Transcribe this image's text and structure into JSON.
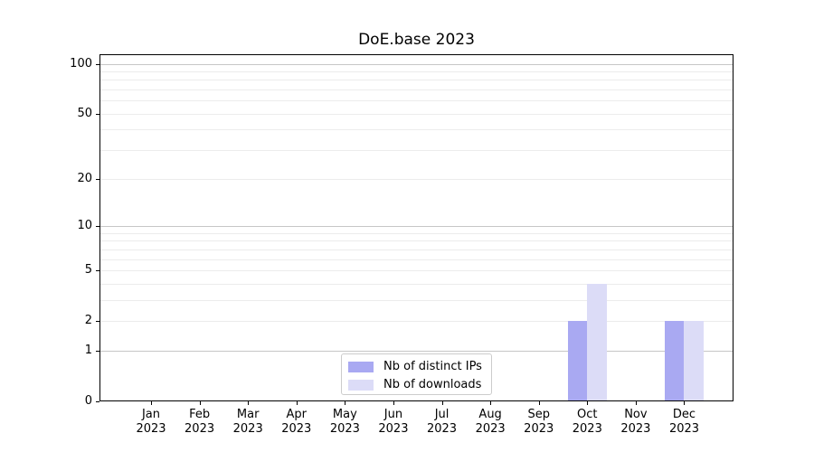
{
  "title": "DoE.base 2023",
  "chart_data": {
    "type": "bar",
    "title": "DoE.base 2023",
    "categories": [
      "Jan 2023",
      "Feb 2023",
      "Mar 2023",
      "Apr 2023",
      "May 2023",
      "Jun 2023",
      "Jul 2023",
      "Aug 2023",
      "Sep 2023",
      "Oct 2023",
      "Nov 2023",
      "Dec 2023"
    ],
    "series": [
      {
        "name": "Nb of distinct IPs",
        "color": "#a9a9f2",
        "values": [
          0,
          0,
          0,
          0,
          0,
          0,
          0,
          0,
          0,
          2,
          0,
          2
        ]
      },
      {
        "name": "Nb of downloads",
        "color": "#dcdcf7",
        "values": [
          0,
          0,
          0,
          0,
          0,
          0,
          0,
          0,
          0,
          4,
          0,
          2
        ]
      }
    ],
    "xlabel": "",
    "ylabel": "",
    "yscale": "log1p",
    "ylim": [
      0,
      114
    ],
    "yticks": [
      0,
      1,
      2,
      5,
      10,
      20,
      50,
      100
    ],
    "grid": true,
    "grid_major": [
      1,
      10,
      100
    ],
    "grid_minor": [
      2,
      3,
      4,
      5,
      6,
      7,
      8,
      9,
      20,
      30,
      40,
      50,
      60,
      70,
      80,
      90
    ],
    "legend_position": "lower center",
    "colors": {
      "grid_major": "#c6c6c6",
      "grid_minor": "#ececec",
      "axis": "#000000",
      "background": "#ffffff"
    }
  }
}
